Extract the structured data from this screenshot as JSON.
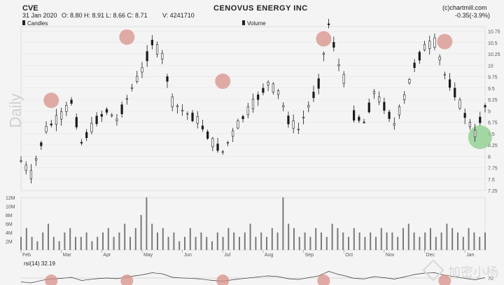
{
  "header": {
    "ticker": "CVE",
    "title": "CENOVUS ENERGY INC",
    "source": "(c)chartmill.com",
    "date": "31 Jan 2020",
    "ohlc": "O: 8.80  H: 8.91  L: 8.66  C: 8.71",
    "volume": "V: 4241710",
    "change": "-0.35(-3.9%)",
    "legend_candles": "Candles",
    "legend_volume": "Volume",
    "rsi_label": "rsi(14) 32.19",
    "period_label": "Daily"
  },
  "watermark": "加密小杨",
  "colors": {
    "candle": "#1a1a1a",
    "volume_bar": "#7a7a7a",
    "highlight_top": "#d9928a",
    "highlight_bottom": "#8fcf8f",
    "grid": "#e2e2e2",
    "background": "#f4f4f4"
  },
  "chart_data": {
    "type": "candlestick",
    "x_ticks": [
      "Feb",
      "Mar",
      "Apr",
      "May",
      "Jun",
      "Jul",
      "Aug",
      "Sep",
      "Oct",
      "Nov",
      "Dec",
      "Jan"
    ],
    "y_ticks": [
      7.25,
      7.5,
      7.75,
      8,
      8.25,
      8.5,
      8.75,
      9,
      9.25,
      9.5,
      9.75,
      10,
      10.25,
      10.5,
      10.75
    ],
    "y_tick_labels": [
      "7.25",
      "7.5",
      "7.75",
      "8",
      "8.25",
      "8.5",
      "8.75",
      "9",
      "9.25",
      "9.5",
      "9.75",
      "10",
      "10.25",
      "10.5",
      "10.75"
    ],
    "ylim": [
      7.25,
      10.85
    ],
    "volume_ticks": [
      "2M",
      "4M",
      "6M",
      "8M",
      "10M",
      "12M"
    ],
    "volume_max": 12,
    "rsi_tick": "70",
    "price_path": [
      [
        0,
        7.9
      ],
      [
        2,
        7.6
      ],
      [
        5,
        8.6
      ],
      [
        8,
        8.9
      ],
      [
        10,
        9.2
      ],
      [
        12,
        8.3
      ],
      [
        15,
        8.8
      ],
      [
        17,
        9.0
      ],
      [
        19,
        8.8
      ],
      [
        22,
        9.5
      ],
      [
        24,
        9.9
      ],
      [
        26,
        10.5
      ],
      [
        28,
        10.2
      ],
      [
        30,
        9.2
      ],
      [
        32,
        9.0
      ],
      [
        35,
        8.8
      ],
      [
        38,
        8.3
      ],
      [
        40,
        8.1
      ],
      [
        43,
        8.7
      ],
      [
        45,
        9.0
      ],
      [
        47,
        9.3
      ],
      [
        49,
        9.6
      ],
      [
        51,
        9.4
      ],
      [
        53,
        8.8
      ],
      [
        55,
        8.6
      ],
      [
        57,
        9.1
      ],
      [
        59,
        9.6
      ],
      [
        61,
        10.9
      ],
      [
        63,
        10.0
      ],
      [
        65,
        9.4
      ],
      [
        66,
        8.9
      ],
      [
        68,
        8.75
      ],
      [
        70,
        9.4
      ],
      [
        72,
        9.1
      ],
      [
        74,
        8.7
      ],
      [
        76,
        9.3
      ],
      [
        78,
        10.0
      ],
      [
        80,
        10.4
      ],
      [
        82,
        10.5
      ],
      [
        84,
        9.8
      ],
      [
        86,
        9.4
      ],
      [
        88,
        8.9
      ],
      [
        90,
        8.5
      ],
      [
        92,
        9.1
      ]
    ],
    "gaps": [
      [
        64.5,
        65.5
      ]
    ],
    "highlight_peaks": [
      [
        6,
        9.23
      ],
      [
        21,
        10.62
      ],
      [
        40,
        9.65
      ],
      [
        60,
        10.58
      ],
      [
        84,
        10.52
      ]
    ],
    "highlight_low": [
      91,
      8.42
    ],
    "volume": [
      3,
      5,
      3,
      2,
      4,
      6,
      3,
      2,
      4,
      5,
      3,
      3,
      4,
      2,
      3,
      4,
      5,
      3,
      4,
      6,
      3,
      5,
      8,
      12,
      6,
      4,
      5,
      3,
      4,
      2,
      3,
      5,
      3,
      4,
      3,
      2,
      4,
      3,
      5,
      4,
      3,
      4,
      6,
      3,
      4,
      3,
      5,
      4,
      12,
      6,
      5,
      3,
      4,
      3,
      5,
      4,
      3,
      6,
      5,
      4,
      3,
      5,
      4,
      3,
      4,
      3,
      5,
      4,
      4,
      3,
      5,
      6,
      4,
      3,
      4,
      5,
      3,
      4,
      6,
      5,
      4,
      3,
      5,
      4,
      3,
      4
    ]
  }
}
